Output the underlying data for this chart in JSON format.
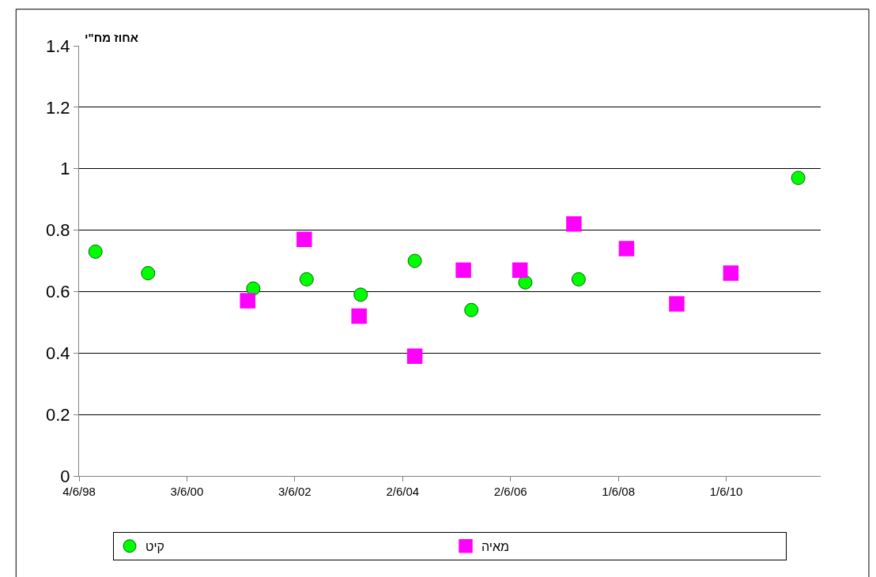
{
  "chart_data": {
    "type": "scatter",
    "ylabel": "אחוז מח\"י",
    "series": [
      {
        "name": "קיט",
        "color": "#00ff00",
        "marker": "circle",
        "x": [
          "1998-09-23",
          "1999-09-14",
          "2001-08-26",
          "2002-08-22",
          "2003-08-23",
          "2004-08-23",
          "2005-09-10",
          "2006-09-10",
          "2007-09-06",
          "2011-10-01"
        ],
        "values": [
          0.73,
          0.66,
          0.61,
          0.64,
          0.59,
          0.7,
          0.54,
          0.63,
          0.64,
          0.97
        ]
      },
      {
        "name": "מאיה",
        "color": "#ff00ff",
        "marker": "square",
        "x": [
          "2001-07-19",
          "2002-08-06",
          "2003-08-12",
          "2004-08-23",
          "2005-07-18",
          "2006-08-05",
          "2007-08-05",
          "2008-07-26",
          "2009-07-01",
          "2010-07-02"
        ],
        "values": [
          0.57,
          0.77,
          0.52,
          0.39,
          0.67,
          0.67,
          0.82,
          0.74,
          0.56,
          0.66
        ]
      }
    ],
    "xlim": [
      "1998-06-04",
      "2012-03-01"
    ],
    "xticks": [
      {
        "value": "1998-06-04",
        "label": "4/6/98"
      },
      {
        "value": "2000-06-03",
        "label": "3/6/00"
      },
      {
        "value": "2002-06-03",
        "label": "3/6/02"
      },
      {
        "value": "2004-06-02",
        "label": "2/6/04"
      },
      {
        "value": "2006-06-02",
        "label": "2/6/06"
      },
      {
        "value": "2008-06-01",
        "label": "1/6/08"
      },
      {
        "value": "2010-06-01",
        "label": "1/6/10"
      }
    ],
    "ylim": [
      0,
      1.4
    ],
    "yticks": [
      0,
      0.2,
      0.4,
      0.6,
      0.8,
      1,
      1.2,
      1.4
    ],
    "grid": "y",
    "legend": "bottom"
  }
}
